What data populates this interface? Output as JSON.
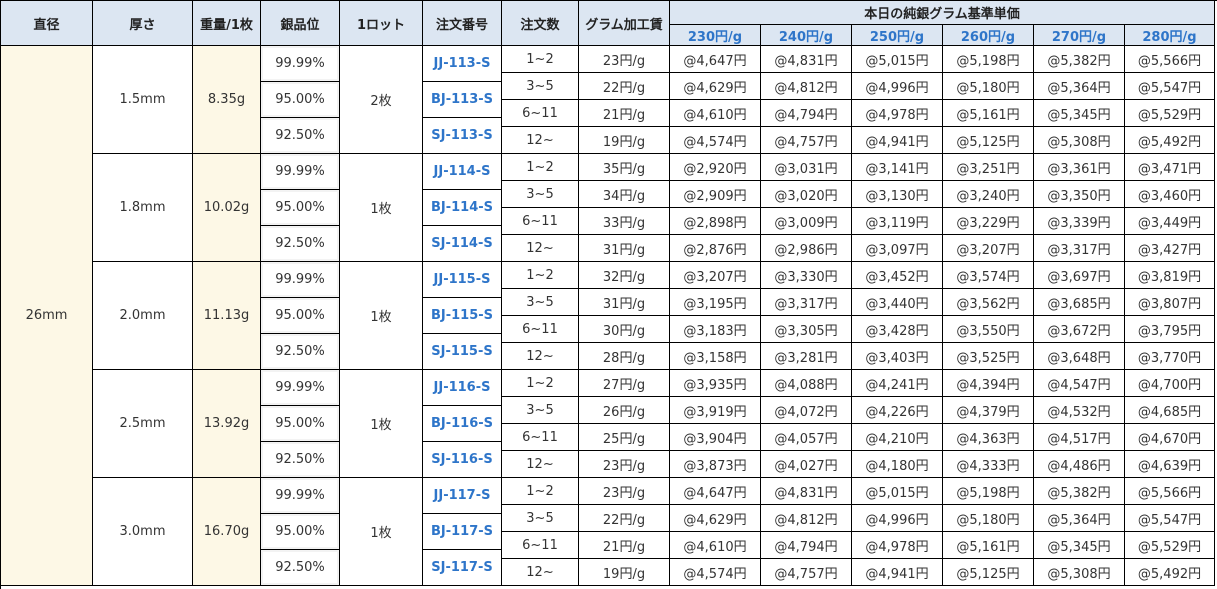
{
  "header": {
    "columns": [
      "直径",
      "厚さ",
      "重量/1枚",
      "銀品位",
      "1ロット",
      "注文番号",
      "注文数",
      "グラム加工賃"
    ],
    "price_group": "本日の純銀グラム基準単価",
    "price_columns": [
      "230円/g",
      "240円/g",
      "250円/g",
      "260円/g",
      "270円/g",
      "280円/g"
    ]
  },
  "diameter": "26mm",
  "groups": [
    {
      "thickness": "1.5mm",
      "weight": "8.35g",
      "lot": "2枚",
      "grades": [
        {
          "purity": "99.99%",
          "code": "JJ-113-S"
        },
        {
          "purity": "95.00%",
          "code": "BJ-113-S"
        },
        {
          "purity": "92.50%",
          "code": "SJ-113-S"
        }
      ],
      "rows": [
        {
          "qty": "1~2",
          "fee": "23円/g",
          "prices": [
            "@4,647円",
            "@4,831円",
            "@5,015円",
            "@5,198円",
            "@5,382円",
            "@5,566円"
          ]
        },
        {
          "qty": "3~5",
          "fee": "22円/g",
          "prices": [
            "@4,629円",
            "@4,812円",
            "@4,996円",
            "@5,180円",
            "@5,364円",
            "@5,547円"
          ]
        },
        {
          "qty": "6~11",
          "fee": "21円/g",
          "prices": [
            "@4,610円",
            "@4,794円",
            "@4,978円",
            "@5,161円",
            "@5,345円",
            "@5,529円"
          ]
        },
        {
          "qty": "12~",
          "fee": "19円/g",
          "prices": [
            "@4,574円",
            "@4,757円",
            "@4,941円",
            "@5,125円",
            "@5,308円",
            "@5,492円"
          ]
        }
      ]
    },
    {
      "thickness": "1.8mm",
      "weight": "10.02g",
      "lot": "1枚",
      "grades": [
        {
          "purity": "99.99%",
          "code": "JJ-114-S"
        },
        {
          "purity": "95.00%",
          "code": "BJ-114-S"
        },
        {
          "purity": "92.50%",
          "code": "SJ-114-S"
        }
      ],
      "rows": [
        {
          "qty": "1~2",
          "fee": "35円/g",
          "prices": [
            "@2,920円",
            "@3,031円",
            "@3,141円",
            "@3,251円",
            "@3,361円",
            "@3,471円"
          ]
        },
        {
          "qty": "3~5",
          "fee": "34円/g",
          "prices": [
            "@2,909円",
            "@3,020円",
            "@3,130円",
            "@3,240円",
            "@3,350円",
            "@3,460円"
          ]
        },
        {
          "qty": "6~11",
          "fee": "33円/g",
          "prices": [
            "@2,898円",
            "@3,009円",
            "@3,119円",
            "@3,229円",
            "@3,339円",
            "@3,449円"
          ]
        },
        {
          "qty": "12~",
          "fee": "31円/g",
          "prices": [
            "@2,876円",
            "@2,986円",
            "@3,097円",
            "@3,207円",
            "@3,317円",
            "@3,427円"
          ]
        }
      ]
    },
    {
      "thickness": "2.0mm",
      "weight": "11.13g",
      "lot": "1枚",
      "grades": [
        {
          "purity": "99.99%",
          "code": "JJ-115-S"
        },
        {
          "purity": "95.00%",
          "code": "BJ-115-S"
        },
        {
          "purity": "92.50%",
          "code": "SJ-115-S"
        }
      ],
      "rows": [
        {
          "qty": "1~2",
          "fee": "32円/g",
          "prices": [
            "@3,207円",
            "@3,330円",
            "@3,452円",
            "@3,574円",
            "@3,697円",
            "@3,819円"
          ]
        },
        {
          "qty": "3~5",
          "fee": "31円/g",
          "prices": [
            "@3,195円",
            "@3,317円",
            "@3,440円",
            "@3,562円",
            "@3,685円",
            "@3,807円"
          ]
        },
        {
          "qty": "6~11",
          "fee": "30円/g",
          "prices": [
            "@3,183円",
            "@3,305円",
            "@3,428円",
            "@3,550円",
            "@3,672円",
            "@3,795円"
          ]
        },
        {
          "qty": "12~",
          "fee": "28円/g",
          "prices": [
            "@3,158円",
            "@3,281円",
            "@3,403円",
            "@3,525円",
            "@3,648円",
            "@3,770円"
          ]
        }
      ]
    },
    {
      "thickness": "2.5mm",
      "weight": "13.92g",
      "lot": "1枚",
      "grades": [
        {
          "purity": "99.99%",
          "code": "JJ-116-S"
        },
        {
          "purity": "95.00%",
          "code": "BJ-116-S"
        },
        {
          "purity": "92.50%",
          "code": "SJ-116-S"
        }
      ],
      "rows": [
        {
          "qty": "1~2",
          "fee": "27円/g",
          "prices": [
            "@3,935円",
            "@4,088円",
            "@4,241円",
            "@4,394円",
            "@4,547円",
            "@4,700円"
          ]
        },
        {
          "qty": "3~5",
          "fee": "26円/g",
          "prices": [
            "@3,919円",
            "@4,072円",
            "@4,226円",
            "@4,379円",
            "@4,532円",
            "@4,685円"
          ]
        },
        {
          "qty": "6~11",
          "fee": "25円/g",
          "prices": [
            "@3,904円",
            "@4,057円",
            "@4,210円",
            "@4,363円",
            "@4,517円",
            "@4,670円"
          ]
        },
        {
          "qty": "12~",
          "fee": "23円/g",
          "prices": [
            "@3,873円",
            "@4,027円",
            "@4,180円",
            "@4,333円",
            "@4,486円",
            "@4,639円"
          ]
        }
      ]
    },
    {
      "thickness": "3.0mm",
      "weight": "16.70g",
      "lot": "1枚",
      "grades": [
        {
          "purity": "99.99%",
          "code": "JJ-117-S"
        },
        {
          "purity": "95.00%",
          "code": "BJ-117-S"
        },
        {
          "purity": "92.50%",
          "code": "SJ-117-S"
        }
      ],
      "rows": [
        {
          "qty": "1~2",
          "fee": "23円/g",
          "prices": [
            "@4,647円",
            "@4,831円",
            "@5,015円",
            "@5,198円",
            "@5,382円",
            "@5,566円"
          ]
        },
        {
          "qty": "3~5",
          "fee": "22円/g",
          "prices": [
            "@4,629円",
            "@4,812円",
            "@4,996円",
            "@5,180円",
            "@5,364円",
            "@5,547円"
          ]
        },
        {
          "qty": "6~11",
          "fee": "21円/g",
          "prices": [
            "@4,610円",
            "@4,794円",
            "@4,978円",
            "@5,161円",
            "@5,345円",
            "@5,529円"
          ]
        },
        {
          "qty": "12~",
          "fee": "19円/g",
          "prices": [
            "@4,574円",
            "@4,757円",
            "@4,941円",
            "@5,125円",
            "@5,308円",
            "@5,492円"
          ]
        }
      ]
    }
  ]
}
